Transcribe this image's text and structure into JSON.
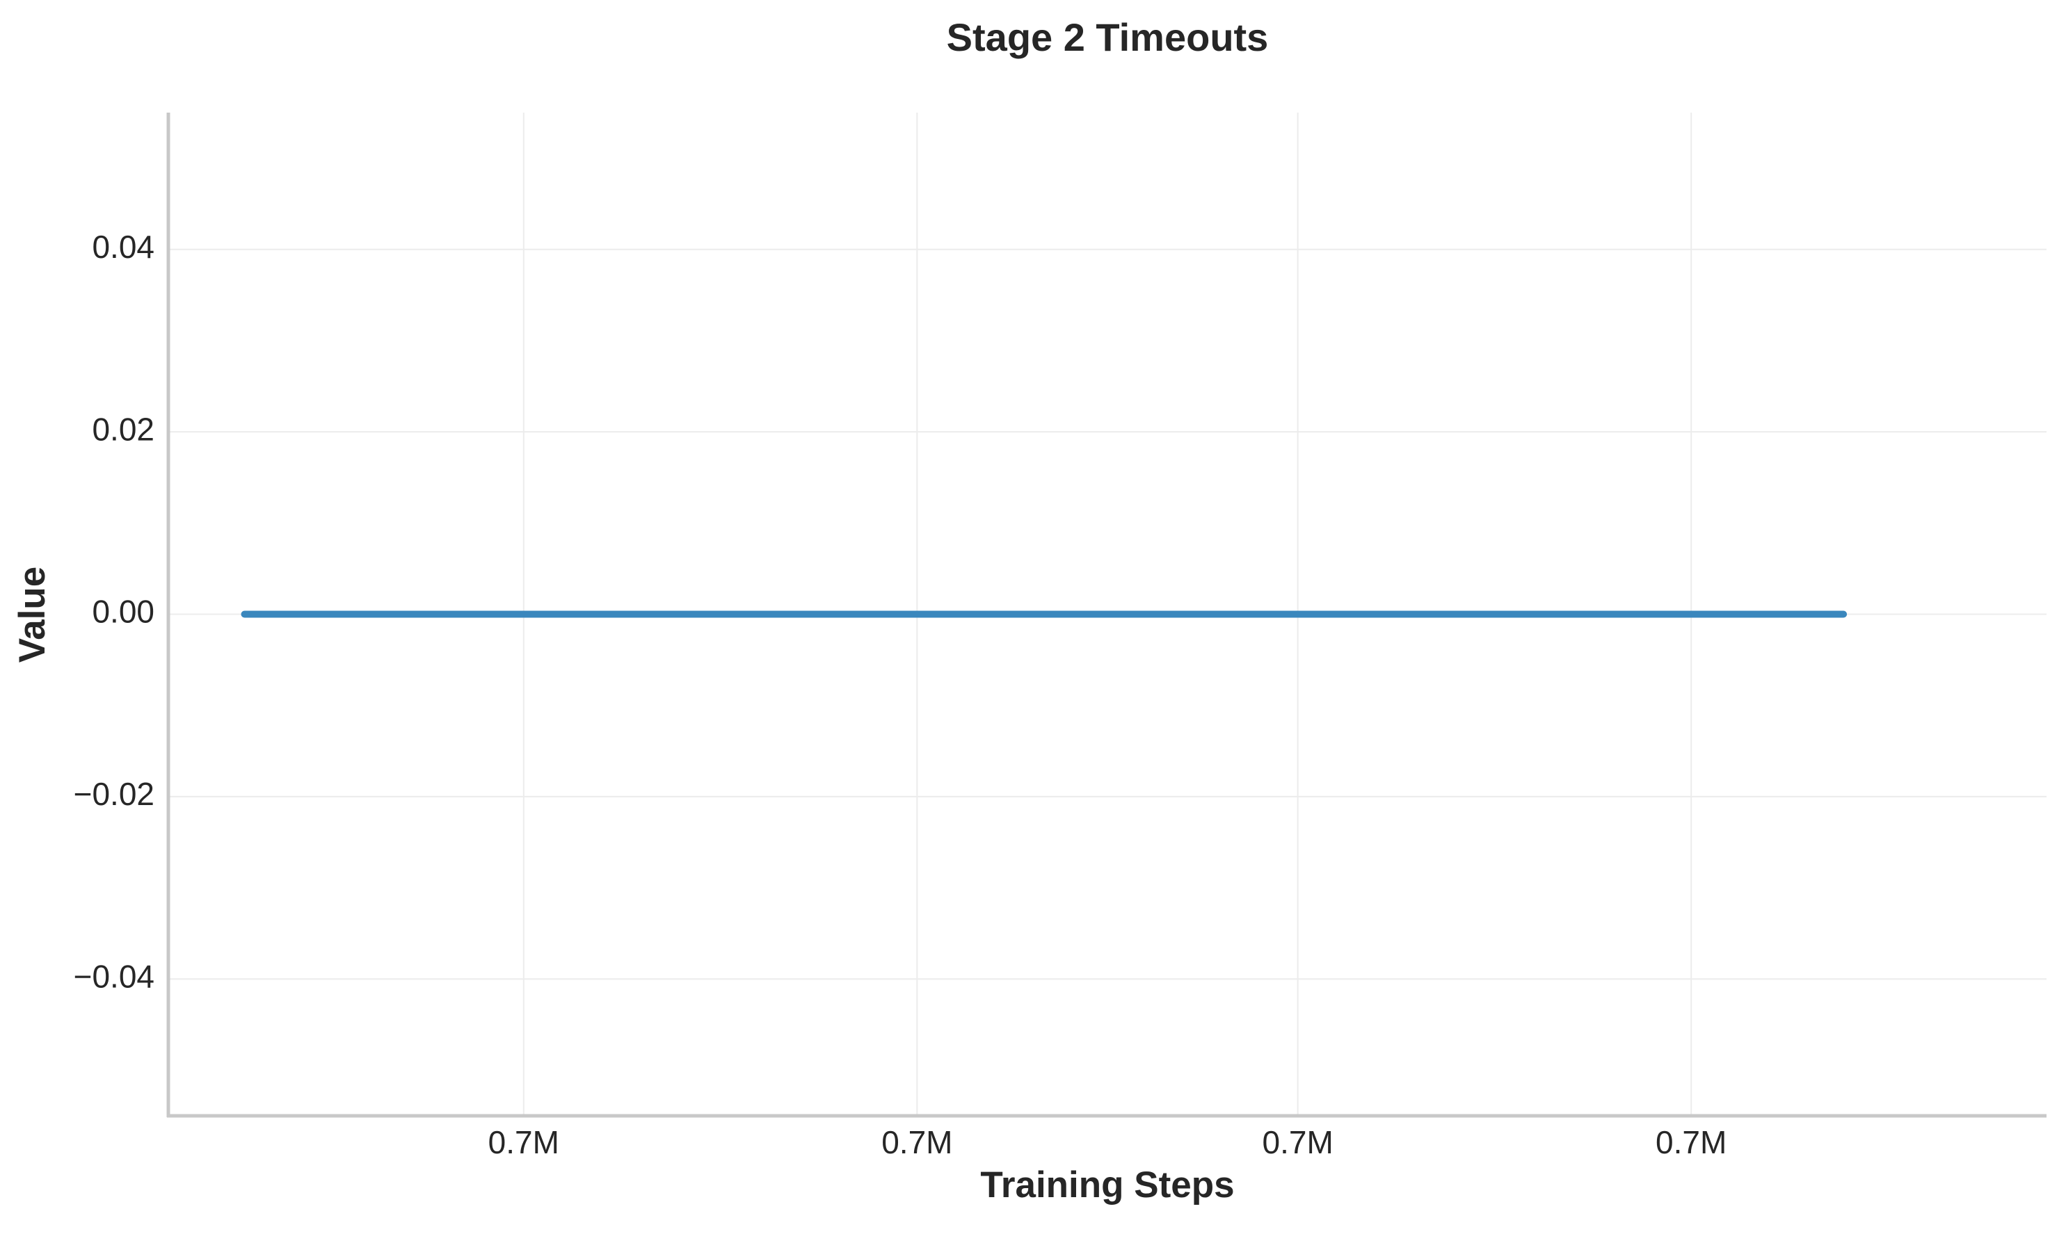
{
  "chart_data": {
    "type": "line",
    "title": "Stage 2 Timeouts",
    "xlabel": "Training Steps",
    "ylabel": "Value",
    "xlim": [
      0.6926,
      0.7074
    ],
    "ylim": [
      -0.055,
      0.055
    ],
    "x_ticks": [
      {
        "value": 0.6954,
        "label": "0.7M"
      },
      {
        "value": 0.6985,
        "label": "0.7M"
      },
      {
        "value": 0.7015,
        "label": "0.7M"
      },
      {
        "value": 0.7046,
        "label": "0.7M"
      }
    ],
    "y_ticks": [
      {
        "value": 0.04,
        "label": "0.04"
      },
      {
        "value": 0.02,
        "label": "0.02"
      },
      {
        "value": 0.0,
        "label": "0.00"
      },
      {
        "value": -0.02,
        "label": "−0.02"
      },
      {
        "value": -0.04,
        "label": "−0.04"
      }
    ],
    "grid": true,
    "legend": "none",
    "series": [
      {
        "color": "#3a87bd",
        "x": [
          0.6932,
          0.6946,
          0.6962,
          0.6978,
          0.6994,
          0.701,
          0.7026,
          0.7042,
          0.7058
        ],
        "y": [
          0,
          0,
          0,
          0,
          0,
          0,
          0,
          0,
          0
        ]
      }
    ]
  },
  "colors": {
    "grid": "#ececec",
    "spine": "#c8c8c8",
    "text": "#262626"
  }
}
